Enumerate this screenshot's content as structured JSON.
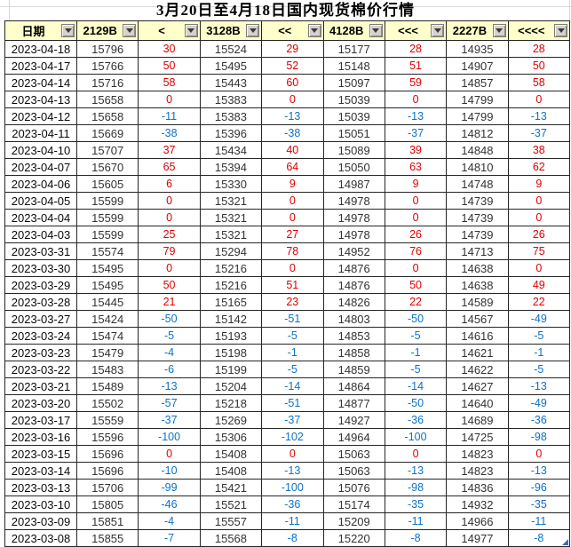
{
  "title": "3月20日至4月18日国内现货棉价行情",
  "colors": {
    "header_bg": "#ffffcc",
    "positive_change": "#e10000",
    "negative_change": "#0b72c8",
    "price_text": "#333333"
  },
  "table": {
    "columns": [
      {
        "label": "日期"
      },
      {
        "label": "2129B"
      },
      {
        "label": "<"
      },
      {
        "label": "3128B"
      },
      {
        "label": "<<"
      },
      {
        "label": "4128B"
      },
      {
        "label": "<<<"
      },
      {
        "label": "2227B"
      },
      {
        "label": "<<<<"
      }
    ],
    "rows": [
      [
        "2023-04-18",
        15796,
        30,
        15524,
        29,
        15177,
        28,
        14935,
        28
      ],
      [
        "2023-04-17",
        15766,
        50,
        15495,
        52,
        15148,
        51,
        14907,
        50
      ],
      [
        "2023-04-14",
        15716,
        58,
        15443,
        60,
        15097,
        59,
        14857,
        58
      ],
      [
        "2023-04-13",
        15658,
        0,
        15383,
        0,
        15039,
        0,
        14799,
        0
      ],
      [
        "2023-04-12",
        15658,
        -11,
        15383,
        -13,
        15039,
        -13,
        14799,
        -13
      ],
      [
        "2023-04-11",
        15669,
        -38,
        15396,
        -38,
        15051,
        -37,
        14812,
        -37
      ],
      [
        "2023-04-10",
        15707,
        37,
        15434,
        40,
        15089,
        39,
        14848,
        38
      ],
      [
        "2023-04-07",
        15670,
        65,
        15394,
        64,
        15050,
        63,
        14810,
        62
      ],
      [
        "2023-04-06",
        15605,
        6,
        15330,
        9,
        14987,
        9,
        14748,
        9
      ],
      [
        "2023-04-05",
        15599,
        0,
        15321,
        0,
        14978,
        0,
        14739,
        0
      ],
      [
        "2023-04-04",
        15599,
        0,
        15321,
        0,
        14978,
        0,
        14739,
        0
      ],
      [
        "2023-04-03",
        15599,
        25,
        15321,
        27,
        14978,
        26,
        14739,
        26
      ],
      [
        "2023-03-31",
        15574,
        79,
        15294,
        78,
        14952,
        76,
        14713,
        75
      ],
      [
        "2023-03-30",
        15495,
        0,
        15216,
        0,
        14876,
        0,
        14638,
        0
      ],
      [
        "2023-03-29",
        15495,
        50,
        15216,
        51,
        14876,
        50,
        14638,
        49
      ],
      [
        "2023-03-28",
        15445,
        21,
        15165,
        23,
        14826,
        22,
        14589,
        22
      ],
      [
        "2023-03-27",
        15424,
        -50,
        15142,
        -51,
        14803,
        -50,
        14567,
        -49
      ],
      [
        "2023-03-24",
        15474,
        -5,
        15193,
        -5,
        14853,
        -5,
        14616,
        -5
      ],
      [
        "2023-03-23",
        15479,
        -4,
        15198,
        -1,
        14858,
        -1,
        14621,
        -1
      ],
      [
        "2023-03-22",
        15483,
        -6,
        15199,
        -5,
        14859,
        -5,
        14622,
        -5
      ],
      [
        "2023-03-21",
        15489,
        -13,
        15204,
        -14,
        14864,
        -14,
        14627,
        -13
      ],
      [
        "2023-03-20",
        15502,
        -57,
        15218,
        -51,
        14877,
        -50,
        14640,
        -49
      ],
      [
        "2023-03-17",
        15559,
        -37,
        15269,
        -37,
        14927,
        -36,
        14689,
        -36
      ],
      [
        "2023-03-16",
        15596,
        -100,
        15306,
        -102,
        14964,
        -100,
        14725,
        -98
      ],
      [
        "2023-03-15",
        15696,
        0,
        15408,
        0,
        15063,
        0,
        14823,
        0
      ],
      [
        "2023-03-14",
        15696,
        -10,
        15408,
        -13,
        15063,
        -13,
        14823,
        -13
      ],
      [
        "2023-03-13",
        15706,
        -99,
        15421,
        -100,
        15076,
        -98,
        14836,
        -96
      ],
      [
        "2023-03-10",
        15805,
        -46,
        15521,
        -36,
        15174,
        -35,
        14932,
        -35
      ],
      [
        "2023-03-09",
        15851,
        -4,
        15557,
        -11,
        15209,
        -11,
        14966,
        -11
      ],
      [
        "2023-03-08",
        15855,
        -7,
        15568,
        -8,
        15220,
        -8,
        14977,
        -8
      ]
    ]
  }
}
